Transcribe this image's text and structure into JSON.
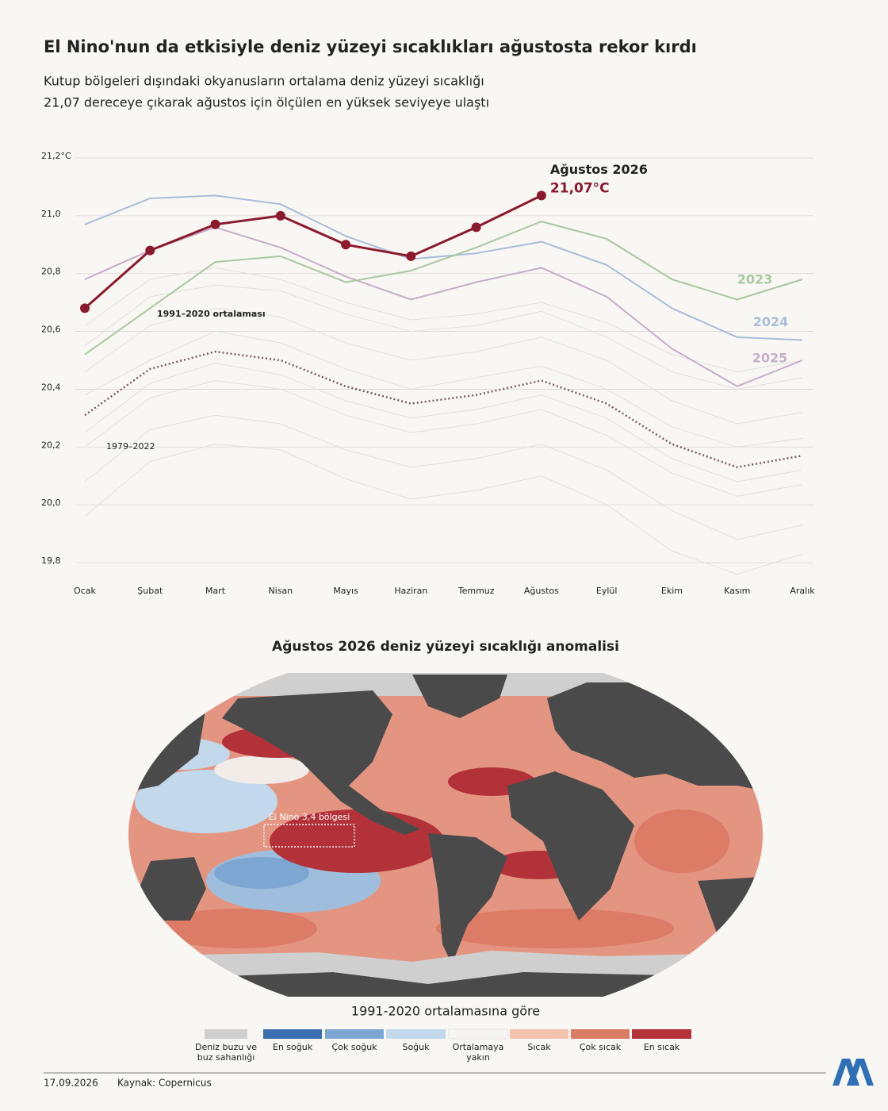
{
  "title": "El Nino'nun da etkisiyle deniz yüzeyi sıcaklıkları ağustosta rekor kırdı",
  "subtitle": [
    "Kutup bölgeleri dışındaki okyanusların ortalama deniz yüzeyi sıcaklığı",
    "21,07 dereceye çıkarak ağustos için ölçülen en yüksek seviyeye ulaştı"
  ],
  "chart_data": {
    "type": "line",
    "categories": [
      "Ocak",
      "Şubat",
      "Mart",
      "Nisan",
      "Mayıs",
      "Haziran",
      "Temmuz",
      "Ağustos",
      "Eylül",
      "Ekim",
      "Kasım",
      "Aralık"
    ],
    "ylim": [
      19.8,
      21.2
    ],
    "yticks": [
      {
        "value": 19.8,
        "label": "19,8"
      },
      {
        "value": 20.0,
        "label": "20,0"
      },
      {
        "value": 20.2,
        "label": "20,2"
      },
      {
        "value": 20.4,
        "label": "20,4"
      },
      {
        "value": 20.6,
        "label": "20,6"
      },
      {
        "value": 20.8,
        "label": "20,8"
      },
      {
        "value": 21.0,
        "label": "21,0"
      },
      {
        "value": 21.2,
        "label": "21,2°C"
      }
    ],
    "grid": true,
    "background": {
      "label": "1979–2022",
      "color": "#e2e0dd",
      "lines": [
        [
          20.46,
          20.62,
          20.68,
          20.65,
          20.56,
          20.5,
          20.53,
          20.58,
          20.5,
          20.36,
          20.28,
          20.32
        ],
        [
          20.55,
          20.72,
          20.76,
          20.74,
          20.66,
          20.6,
          20.62,
          20.67,
          20.58,
          20.46,
          20.4,
          20.44
        ],
        [
          20.2,
          20.37,
          20.43,
          20.4,
          20.31,
          20.25,
          20.28,
          20.33,
          20.24,
          20.11,
          20.03,
          20.07
        ],
        [
          20.08,
          20.26,
          20.31,
          20.28,
          20.19,
          20.13,
          20.16,
          20.21,
          20.12,
          19.98,
          19.88,
          19.93
        ],
        [
          19.96,
          20.15,
          20.21,
          20.19,
          20.09,
          20.02,
          20.05,
          20.1,
          20.0,
          19.84,
          19.76,
          19.83
        ],
        [
          20.38,
          20.5,
          20.6,
          20.56,
          20.47,
          20.4,
          20.44,
          20.48,
          20.4,
          20.27,
          20.2,
          20.23
        ],
        [
          20.25,
          20.42,
          20.49,
          20.45,
          20.36,
          20.3,
          20.33,
          20.38,
          20.3,
          20.16,
          20.08,
          20.12
        ],
        [
          20.62,
          20.78,
          20.82,
          20.78,
          20.7,
          20.64,
          20.66,
          20.7,
          20.63,
          20.52,
          20.46,
          20.5
        ]
      ]
    },
    "series": [
      {
        "name": "1991–2020 ortalaması",
        "color": "#7a5c5c",
        "dash": "dotted",
        "values": [
          20.31,
          20.47,
          20.53,
          20.5,
          20.41,
          20.35,
          20.38,
          20.43,
          20.35,
          20.21,
          20.13,
          20.17
        ]
      },
      {
        "name": "2025",
        "color": "#c4aec9",
        "values": [
          20.78,
          20.88,
          20.96,
          20.89,
          20.79,
          20.71,
          20.77,
          20.82,
          20.72,
          20.54,
          20.41,
          20.5
        ]
      },
      {
        "name": "2024",
        "color": "#a9bcd8",
        "values": [
          20.97,
          21.06,
          21.07,
          21.04,
          20.93,
          20.85,
          20.87,
          20.91,
          20.83,
          20.68,
          20.58,
          20.57
        ]
      },
      {
        "name": "2023",
        "color": "#a8c8a0",
        "values": [
          20.52,
          20.68,
          20.84,
          20.86,
          20.77,
          20.81,
          20.89,
          20.98,
          20.92,
          20.78,
          20.71,
          20.78
        ]
      },
      {
        "name": "Ağustos 2026",
        "color": "#8b1a2e",
        "marker": true,
        "values": [
          20.68,
          20.88,
          20.97,
          21.0,
          20.9,
          20.86,
          20.96,
          21.07,
          null,
          null,
          null,
          null
        ],
        "value_labels": [
          null,
          null,
          null,
          null,
          null,
          null,
          null,
          "21,07°C",
          null,
          null,
          null,
          null
        ]
      }
    ]
  },
  "map": {
    "title": "Ağustos 2026 deniz yüzeyi sıcaklığı anomalisi",
    "region_label": "El Nino 3,4 bölgesi",
    "caption": "1991-2020 ortalamasına göre",
    "legend": [
      {
        "label": [
          "Deniz buzu ve",
          "buz sahanlığı"
        ],
        "color": "#cfcfcf"
      },
      {
        "label": [
          "En soğuk"
        ],
        "color": "#3b6fb0"
      },
      {
        "label": [
          "Çok soğuk"
        ],
        "color": "#7ea6d2"
      },
      {
        "label": [
          "Soğuk"
        ],
        "color": "#c3d8ea"
      },
      {
        "label": [
          "Ortalamaya",
          "yakın"
        ],
        "color": "#f7f5f2"
      },
      {
        "label": [
          "Sıcak"
        ],
        "color": "#f3c2ad"
      },
      {
        "label": [
          "Çok sıcak"
        ],
        "color": "#dc7b66"
      },
      {
        "label": [
          "En sıcak"
        ],
        "color": "#b3323a"
      }
    ]
  },
  "footer": {
    "date": "17.09.2026",
    "source": "Kaynak: Copernicus"
  }
}
